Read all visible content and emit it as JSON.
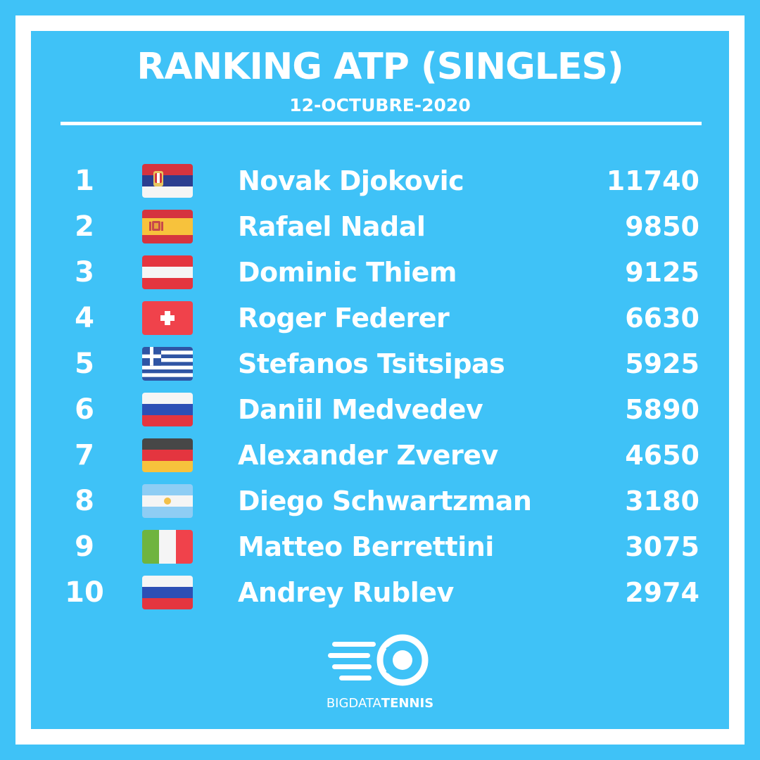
{
  "title": "RANKING ATP (SINGLES)",
  "date": "12-OCTUBRE-2020",
  "colors": {
    "background": "#3fc2f7",
    "border": "#ffffff",
    "text": "#ffffff"
  },
  "rankings": [
    {
      "rank": "1",
      "flag": "serbia-flag-icon",
      "name": "Novak Djokovic",
      "points": "11740"
    },
    {
      "rank": "2",
      "flag": "spain-flag-icon",
      "name": "Rafael Nadal",
      "points": "9850"
    },
    {
      "rank": "3",
      "flag": "austria-flag-icon",
      "name": "Dominic Thiem",
      "points": "9125"
    },
    {
      "rank": "4",
      "flag": "switzerland-flag-icon",
      "name": "Roger Federer",
      "points": "6630"
    },
    {
      "rank": "5",
      "flag": "greece-flag-icon",
      "name": "Stefanos Tsitsipas",
      "points": "5925"
    },
    {
      "rank": "6",
      "flag": "russia-flag-icon",
      "name": "Daniil Medvedev",
      "points": "5890"
    },
    {
      "rank": "7",
      "flag": "germany-flag-icon",
      "name": "Alexander Zverev",
      "points": "4650"
    },
    {
      "rank": "8",
      "flag": "argentina-flag-icon",
      "name": "Diego Schwartzman",
      "points": "3180"
    },
    {
      "rank": "9",
      "flag": "italy-flag-icon",
      "name": "Matteo Berrettini",
      "points": "3075"
    },
    {
      "rank": "10",
      "flag": "russia-flag-icon",
      "name": "Andrey Rublev",
      "points": "2974"
    }
  ],
  "brand": {
    "icon": "tennis-ball-logo-icon",
    "name_regular": "BIGDATA",
    "name_bold": "TENNIS"
  }
}
